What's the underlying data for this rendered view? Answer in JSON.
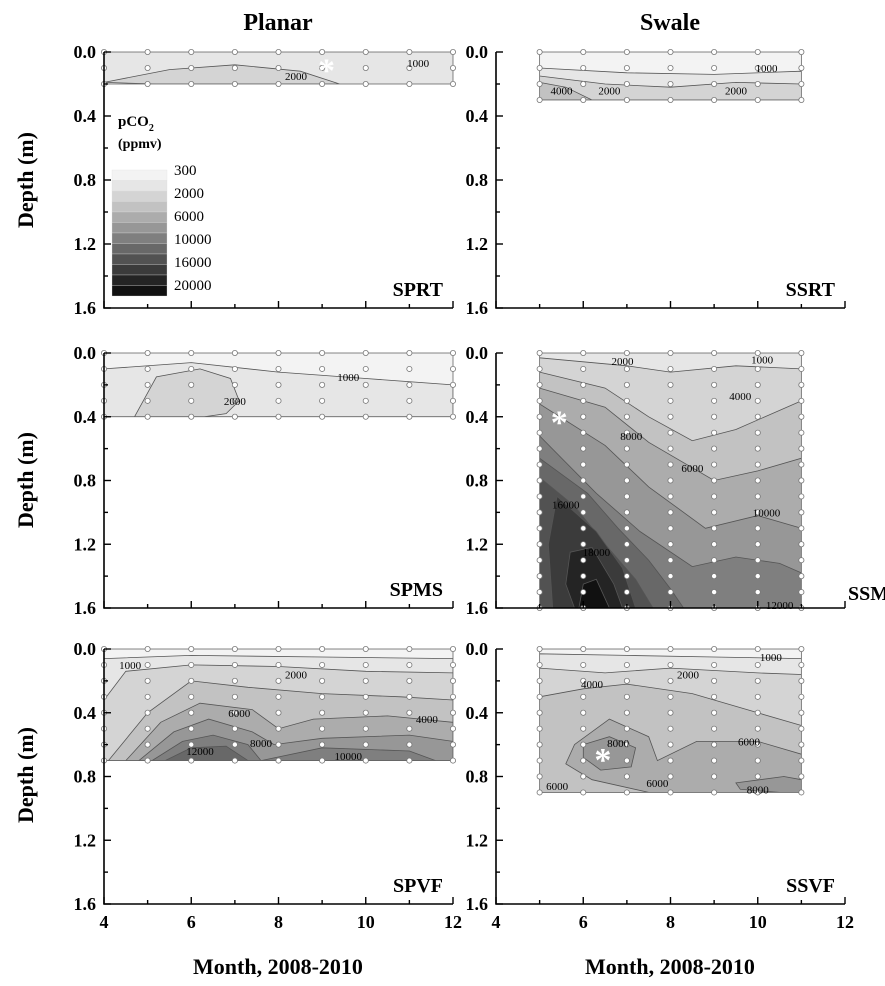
{
  "figure": {
    "col_titles": [
      "Planar",
      "Swale"
    ],
    "ylabel": "Depth (m)",
    "xlabel": "Month, 2008-2010",
    "legend": {
      "title": "pCO",
      "title_sub": "2",
      "unit": "(ppmv)",
      "entries": [
        "300",
        "2000",
        "6000",
        "10000",
        "16000",
        "20000"
      ],
      "colors": [
        "#f3f3f3",
        "#e6e6e6",
        "#d4d4d4",
        "#c2c2c2",
        "#acacac",
        "#979797",
        "#7f7f7f",
        "#686868",
        "#525252",
        "#3b3b3b",
        "#242424",
        "#111111"
      ]
    }
  },
  "chart_data": [
    {
      "type": "contour",
      "panel": "SPRT",
      "column": "Planar",
      "xlim": [
        4,
        12
      ],
      "ylim": [
        1.6,
        0.0
      ],
      "xticks": [
        "4",
        "6",
        "8",
        "10",
        "12"
      ],
      "yticks": [
        "0.0",
        "0.4",
        "0.8",
        "1.2",
        "1.6"
      ],
      "x_range": [
        4,
        12
      ],
      "depth_max": 0.2,
      "background_level": 1000,
      "regions": [
        {
          "level": 2000,
          "x": [
            4,
            5.5,
            7,
            8.5,
            9.4,
            8.8,
            7,
            5.2,
            4
          ],
          "depth": [
            0.19,
            0.11,
            0.08,
            0.12,
            0.2,
            0.2,
            0.2,
            0.2,
            0.19
          ]
        }
      ],
      "contour_labels": [
        {
          "text": "1000",
          "x": 11.2,
          "depth": 0.07
        },
        {
          "text": "2000",
          "x": 8.4,
          "depth": 0.15
        }
      ],
      "marker_at": {
        "x": 9.1,
        "depth": 0.11
      }
    },
    {
      "type": "contour",
      "panel": "SSRT",
      "column": "Swale",
      "xlim": [
        4,
        12
      ],
      "ylim": [
        1.6,
        0.0
      ],
      "xticks": [
        "4",
        "6",
        "8",
        "10",
        "12"
      ],
      "yticks": [
        "0.0",
        "0.4",
        "0.8",
        "1.2",
        "1.6"
      ],
      "x_range": [
        5,
        11
      ],
      "depth_max": 0.3,
      "background_level": 300,
      "regions": [
        {
          "level": 1000,
          "x": [
            5,
            7,
            9,
            11,
            11,
            5
          ],
          "depth": [
            0.1,
            0.13,
            0.14,
            0.12,
            0.3,
            0.3
          ]
        },
        {
          "level": 2000,
          "x": [
            5,
            6.5,
            8,
            9.5,
            11,
            11,
            5
          ],
          "depth": [
            0.15,
            0.2,
            0.22,
            0.19,
            0.2,
            0.3,
            0.3
          ]
        },
        {
          "level": 4000,
          "x": [
            5,
            5.6,
            6.2,
            5.5,
            5
          ],
          "depth": [
            0.19,
            0.22,
            0.3,
            0.3,
            0.3
          ]
        }
      ],
      "contour_labels": [
        {
          "text": "1000",
          "x": 10.2,
          "depth": 0.1
        },
        {
          "text": "4000",
          "x": 5.5,
          "depth": 0.24
        },
        {
          "text": "2000",
          "x": 6.6,
          "depth": 0.24
        },
        {
          "text": "2000",
          "x": 9.5,
          "depth": 0.24
        }
      ]
    },
    {
      "type": "contour",
      "panel": "SPMS",
      "column": "Planar",
      "xlim": [
        4,
        12
      ],
      "ylim": [
        1.6,
        0.0
      ],
      "xticks": [
        "4",
        "6",
        "8",
        "10",
        "12"
      ],
      "yticks": [
        "0.0",
        "0.4",
        "0.8",
        "1.2",
        "1.6"
      ],
      "x_range": [
        4,
        12
      ],
      "depth_max": 0.4,
      "background_level": 300,
      "regions": [
        {
          "level": 1000,
          "x": [
            4,
            6,
            8,
            10,
            12,
            12,
            4
          ],
          "depth": [
            0.1,
            0.06,
            0.12,
            0.16,
            0.2,
            0.4,
            0.4
          ]
        },
        {
          "level": 2000,
          "x": [
            4.7,
            5.2,
            6.2,
            6.9,
            7.1,
            6.8,
            6.3,
            4.7
          ],
          "depth": [
            0.4,
            0.15,
            0.1,
            0.16,
            0.3,
            0.38,
            0.4,
            0.4
          ]
        }
      ],
      "contour_labels": [
        {
          "text": "1000",
          "x": 9.6,
          "depth": 0.15
        },
        {
          "text": "2000",
          "x": 7,
          "depth": 0.3
        }
      ]
    },
    {
      "type": "contour",
      "panel": "SSMS",
      "column": "Swale",
      "xlim": [
        4,
        12
      ],
      "ylim": [
        1.6,
        0.0
      ],
      "xticks": [
        "4",
        "6",
        "8",
        "10",
        "12"
      ],
      "yticks": [
        "0.0",
        "0.4",
        "0.8",
        "1.2",
        "1.6"
      ],
      "x_range": [
        5,
        11
      ],
      "depth_max": 1.6,
      "background_level": 1000,
      "regions": [
        {
          "level": 2000,
          "x": [
            5,
            7,
            8,
            9.5,
            11,
            11,
            5
          ],
          "depth": [
            0.03,
            0.08,
            0.12,
            0.08,
            0.1,
            1.6,
            1.6
          ]
        },
        {
          "level": 4000,
          "x": [
            5,
            6.5,
            7.5,
            8.5,
            9.5,
            11,
            11,
            5
          ],
          "depth": [
            0.12,
            0.22,
            0.4,
            0.55,
            0.48,
            0.3,
            1.6,
            1.6
          ]
        },
        {
          "level": 6000,
          "x": [
            5,
            6.5,
            7.5,
            9,
            10,
            11,
            11,
            5
          ],
          "depth": [
            0.22,
            0.34,
            0.56,
            0.8,
            0.74,
            0.66,
            1.6,
            1.6
          ]
        },
        {
          "level": 8000,
          "x": [
            5,
            6.5,
            7.5,
            8.8,
            10,
            11,
            11,
            5
          ],
          "depth": [
            0.32,
            0.58,
            0.84,
            1.1,
            1.02,
            1.1,
            1.6,
            1.6
          ]
        },
        {
          "level": 10000,
          "x": [
            5,
            6.3,
            7.3,
            8.5,
            9.5,
            10.5,
            11,
            11,
            5
          ],
          "depth": [
            0.52,
            0.88,
            1.12,
            1.34,
            1.28,
            1.32,
            1.38,
            1.6,
            1.6
          ]
        },
        {
          "level": 12000,
          "x": [
            5,
            6.1,
            6.8,
            7.5,
            8,
            8.3,
            5
          ],
          "depth": [
            0.66,
            0.88,
            1.1,
            1.3,
            1.48,
            1.6,
            1.6
          ]
        },
        {
          "level": 14000,
          "x": [
            5,
            5.8,
            6.5,
            7.2,
            7.6,
            5
          ],
          "depth": [
            0.78,
            0.96,
            1.2,
            1.42,
            1.6,
            1.6
          ]
        },
        {
          "level": 16000,
          "x": [
            5.4,
            6.3,
            6.9,
            7.2,
            5.3,
            5.2
          ],
          "depth": [
            0.9,
            1.12,
            1.35,
            1.6,
            1.6,
            1.2
          ]
        },
        {
          "level": 18000,
          "x": [
            5.7,
            6.2,
            6.7,
            6.9,
            5.8,
            5.6
          ],
          "depth": [
            1.25,
            1.22,
            1.45,
            1.6,
            1.6,
            1.45
          ]
        },
        {
          "level": 20000,
          "x": [
            6,
            6.3,
            6.6,
            5.9
          ],
          "depth": [
            1.45,
            1.42,
            1.6,
            1.6
          ]
        }
      ],
      "contour_labels": [
        {
          "text": "2000",
          "x": 6.9,
          "depth": 0.05
        },
        {
          "text": "1000",
          "x": 10.1,
          "depth": 0.04
        },
        {
          "text": "4000",
          "x": 9.6,
          "depth": 0.27
        },
        {
          "text": "8000",
          "x": 7.1,
          "depth": 0.52
        },
        {
          "text": "6000",
          "x": 8.5,
          "depth": 0.72
        },
        {
          "text": "10000",
          "x": 10.2,
          "depth": 1.0
        },
        {
          "text": "16000",
          "x": 5.6,
          "depth": 0.95
        },
        {
          "text": "18000",
          "x": 6.3,
          "depth": 1.25
        },
        {
          "text": "12000",
          "x": 10.5,
          "depth": 1.58
        }
      ],
      "marker_at": {
        "x": 5.45,
        "depth": 0.43
      }
    },
    {
      "type": "contour",
      "panel": "SPVF",
      "column": "Planar",
      "xlim": [
        4,
        12
      ],
      "ylim": [
        1.6,
        0.0
      ],
      "xticks": [
        "4",
        "6",
        "8",
        "10",
        "12"
      ],
      "yticks": [
        "0.0",
        "0.4",
        "0.8",
        "1.2",
        "1.6"
      ],
      "x_range": [
        4,
        12
      ],
      "depth_max": 0.7,
      "background_level": 300,
      "regions": [
        {
          "level": 1000,
          "x": [
            4,
            6,
            9,
            12,
            12,
            4
          ],
          "depth": [
            0.06,
            0.04,
            0.05,
            0.06,
            0.7,
            0.7
          ]
        },
        {
          "level": 2000,
          "x": [
            4,
            4.5,
            6,
            8,
            10,
            12,
            12,
            4
          ],
          "depth": [
            0.32,
            0.14,
            0.1,
            0.11,
            0.14,
            0.15,
            0.7,
            0.7
          ]
        },
        {
          "level": 4000,
          "x": [
            4.1,
            5,
            6,
            7.3,
            9,
            10.8,
            12,
            12,
            4.1
          ],
          "depth": [
            0.7,
            0.4,
            0.2,
            0.24,
            0.28,
            0.3,
            0.32,
            0.7,
            0.7
          ]
        },
        {
          "level": 6000,
          "x": [
            4.5,
            5.3,
            6.2,
            7.4,
            8,
            8.8,
            10.5,
            12,
            12,
            4.5
          ],
          "depth": [
            0.7,
            0.46,
            0.34,
            0.38,
            0.5,
            0.44,
            0.42,
            0.46,
            0.7,
            0.7
          ]
        },
        {
          "level": 8000,
          "x": [
            4.8,
            5.6,
            6.4,
            7.4,
            7.9,
            9,
            11,
            12,
            12,
            4.8
          ],
          "depth": [
            0.7,
            0.52,
            0.44,
            0.52,
            0.6,
            0.56,
            0.54,
            0.58,
            0.7,
            0.7
          ]
        },
        {
          "level": 10000,
          "x": [
            5.1,
            5.8,
            6.5,
            7.3,
            7.6,
            9,
            11,
            11.6,
            5.1
          ],
          "depth": [
            0.7,
            0.58,
            0.54,
            0.6,
            0.7,
            0.62,
            0.64,
            0.7,
            0.7
          ]
        },
        {
          "level": 12000,
          "x": [
            5.4,
            6,
            6.8,
            7.3,
            5.4
          ],
          "depth": [
            0.7,
            0.62,
            0.61,
            0.7,
            0.7
          ]
        }
      ],
      "contour_labels": [
        {
          "text": "1000",
          "x": 4.6,
          "depth": 0.1
        },
        {
          "text": "2000",
          "x": 8.4,
          "depth": 0.16
        },
        {
          "text": "6000",
          "x": 7.1,
          "depth": 0.4
        },
        {
          "text": "4000",
          "x": 11.4,
          "depth": 0.44
        },
        {
          "text": "8000",
          "x": 7.6,
          "depth": 0.59
        },
        {
          "text": "12000",
          "x": 6.2,
          "depth": 0.64
        },
        {
          "text": "10000",
          "x": 9.6,
          "depth": 0.67
        }
      ]
    },
    {
      "type": "contour",
      "panel": "SSVF",
      "column": "Swale",
      "xlim": [
        4,
        12
      ],
      "ylim": [
        1.6,
        0.0
      ],
      "xticks": [
        "4",
        "6",
        "8",
        "10",
        "12"
      ],
      "yticks": [
        "0.0",
        "0.4",
        "0.8",
        "1.2",
        "1.6"
      ],
      "x_range": [
        5,
        11
      ],
      "depth_max": 0.9,
      "background_level": 300,
      "regions": [
        {
          "level": 1000,
          "x": [
            5,
            7,
            9,
            11,
            11,
            5
          ],
          "depth": [
            0.03,
            0.04,
            0.05,
            0.06,
            0.9,
            0.9
          ]
        },
        {
          "level": 2000,
          "x": [
            5,
            6.5,
            8,
            10,
            11,
            11,
            5
          ],
          "depth": [
            0.12,
            0.15,
            0.12,
            0.15,
            0.16,
            0.9,
            0.9
          ]
        },
        {
          "level": 4000,
          "x": [
            5,
            6,
            7,
            8.5,
            10,
            11,
            11,
            5
          ],
          "depth": [
            0.3,
            0.25,
            0.22,
            0.28,
            0.4,
            0.48,
            0.9,
            0.9
          ]
        },
        {
          "level": 6000,
          "x": [
            5.8,
            6.6,
            7.5,
            7.7,
            8.6,
            10,
            11,
            11,
            9,
            7.5,
            6.2,
            5.6
          ],
          "depth": [
            0.6,
            0.44,
            0.55,
            0.7,
            0.58,
            0.58,
            0.66,
            0.9,
            0.9,
            0.9,
            0.82,
            0.72
          ]
        },
        {
          "level": 8000,
          "x": [
            6,
            6.6,
            7.2,
            7.1,
            6.4,
            6
          ],
          "depth": [
            0.6,
            0.55,
            0.62,
            0.74,
            0.76,
            0.68
          ]
        },
        {
          "level": 8000,
          "x": [
            9.5,
            10.6,
            11,
            11,
            10.5,
            9.6
          ],
          "depth": [
            0.84,
            0.8,
            0.82,
            0.9,
            0.9,
            0.88
          ]
        }
      ],
      "contour_labels": [
        {
          "text": "1000",
          "x": 10.3,
          "depth": 0.05
        },
        {
          "text": "2000",
          "x": 8.4,
          "depth": 0.16
        },
        {
          "text": "4000",
          "x": 6.2,
          "depth": 0.22
        },
        {
          "text": "8000",
          "x": 6.8,
          "depth": 0.59
        },
        {
          "text": "6000",
          "x": 9.8,
          "depth": 0.58
        },
        {
          "text": "6000",
          "x": 5.4,
          "depth": 0.86
        },
        {
          "text": "6000",
          "x": 7.7,
          "depth": 0.84
        },
        {
          "text": "8000",
          "x": 10,
          "depth": 0.88
        }
      ],
      "marker_at": {
        "x": 6.45,
        "depth": 0.69
      }
    }
  ]
}
